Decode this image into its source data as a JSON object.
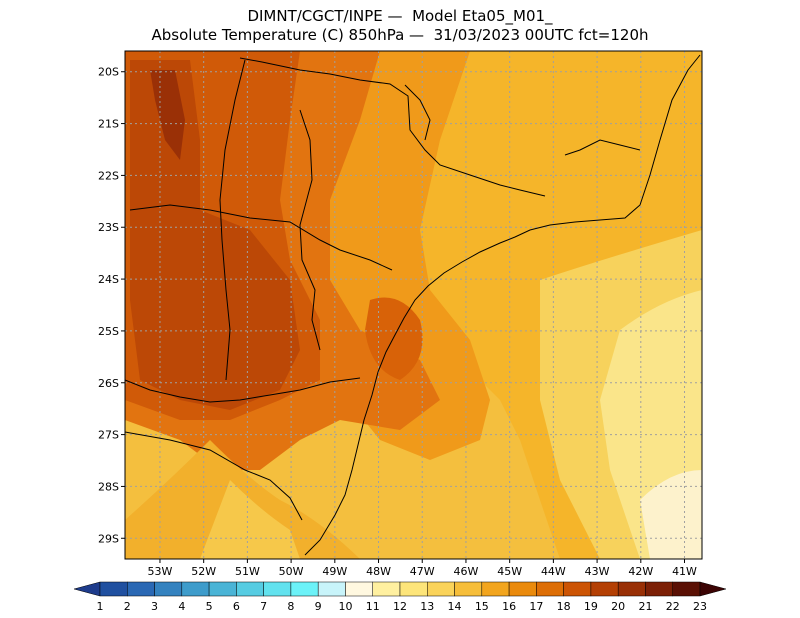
{
  "header": {
    "line1": "DIMNT/CGCT/INPE —  Model Eta05_M01_",
    "line2": "Absolute Temperature (C) 850hPa —  31/03/2023 00UTC fct=120h"
  },
  "map": {
    "lat_labels": [
      "20S",
      "21S",
      "22S",
      "23S",
      "24S",
      "25S",
      "26S",
      "27S",
      "28S",
      "29S"
    ],
    "lon_labels": [
      "53W",
      "52W",
      "51W",
      "50W",
      "49W",
      "48W",
      "47W",
      "46W",
      "45W",
      "44W",
      "43W",
      "42W",
      "41W"
    ],
    "lat_range": [
      -29.4,
      -19.6
    ],
    "lon_range": [
      -53.8,
      -40.6
    ],
    "grid": "dotted"
  },
  "colorbar": {
    "labels": [
      "1",
      "2",
      "3",
      "4",
      "5",
      "6",
      "7",
      "8",
      "9",
      "10",
      "11",
      "12",
      "13",
      "14",
      "15",
      "16",
      "17",
      "18",
      "19",
      "20",
      "21",
      "22",
      "23"
    ],
    "colors": [
      "#1e3c8c",
      "#2050a0",
      "#2a68b4",
      "#3482bf",
      "#3e9ccb",
      "#4ab4d6",
      "#56cce2",
      "#62e2ee",
      "#6cf2f8",
      "#c8f4fa",
      "#fff8e0",
      "#fff0a0",
      "#fde57a",
      "#fad35a",
      "#f6be3a",
      "#f2a51e",
      "#ea8a0c",
      "#dd6e06",
      "#cc5404",
      "#b44004",
      "#993006",
      "#7c2006",
      "#5a1004",
      "#3c0404"
    ]
  }
}
